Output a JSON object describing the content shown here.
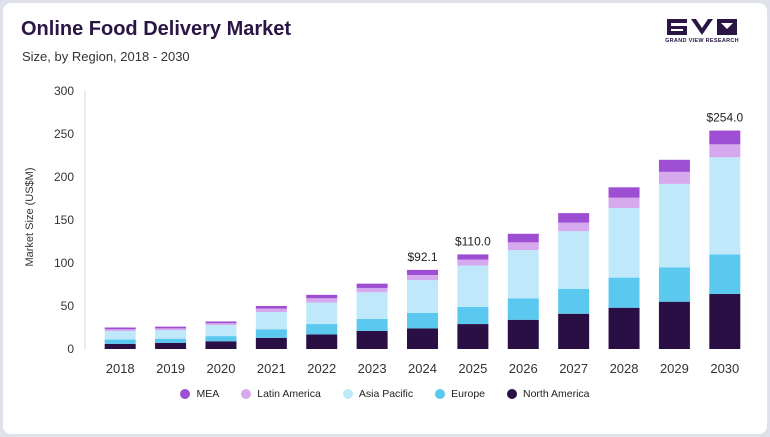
{
  "header": {
    "title": "Online Food Delivery Market",
    "subtitle": "Size, by Region, 2018 - 2030",
    "logo_text": "GRAND VIEW RESEARCH"
  },
  "chart_data": {
    "type": "bar",
    "stacked": true,
    "categories": [
      "2018",
      "2019",
      "2020",
      "2021",
      "2022",
      "2023",
      "2024",
      "2025",
      "2026",
      "2027",
      "2028",
      "2029",
      "2030"
    ],
    "series": [
      {
        "name": "North America",
        "color": "#2a0f45",
        "values": [
          6,
          7,
          9,
          13,
          17,
          21,
          24,
          29,
          34,
          41,
          48,
          55,
          64
        ]
      },
      {
        "name": "Europe",
        "color": "#5bc8f0",
        "values": [
          5,
          5,
          6,
          10,
          12,
          14,
          18,
          20,
          25,
          29,
          35,
          40,
          46
        ]
      },
      {
        "name": "Asia Pacific",
        "color": "#bfe9fb",
        "values": [
          10,
          10,
          13,
          20,
          25,
          31,
          38,
          48,
          56,
          67,
          81,
          97,
          113
        ]
      },
      {
        "name": "Latin America",
        "color": "#d6a8ee",
        "values": [
          2,
          2,
          2,
          4,
          5,
          5,
          6,
          7,
          9,
          10,
          12,
          14,
          15
        ]
      },
      {
        "name": "MEA",
        "color": "#9d4ed3",
        "values": [
          2,
          2,
          2,
          3,
          4,
          5,
          6,
          6,
          10,
          11,
          12,
          14,
          16
        ]
      }
    ],
    "data_labels": [
      {
        "category": "2024",
        "text": "$92.1"
      },
      {
        "category": "2025",
        "text": "$110.0"
      },
      {
        "category": "2030",
        "text": "$254.0"
      }
    ],
    "ylabel": "Market Size (US$M)",
    "xlabel": "",
    "ylim": [
      0,
      300
    ],
    "yticks": [
      "0",
      "50",
      "100",
      "150",
      "200",
      "250",
      "300"
    ],
    "legend_order": [
      "MEA",
      "Latin America",
      "Asia Pacific",
      "Europe",
      "North America"
    ],
    "legend_position": "bottom-center",
    "grid": false
  }
}
